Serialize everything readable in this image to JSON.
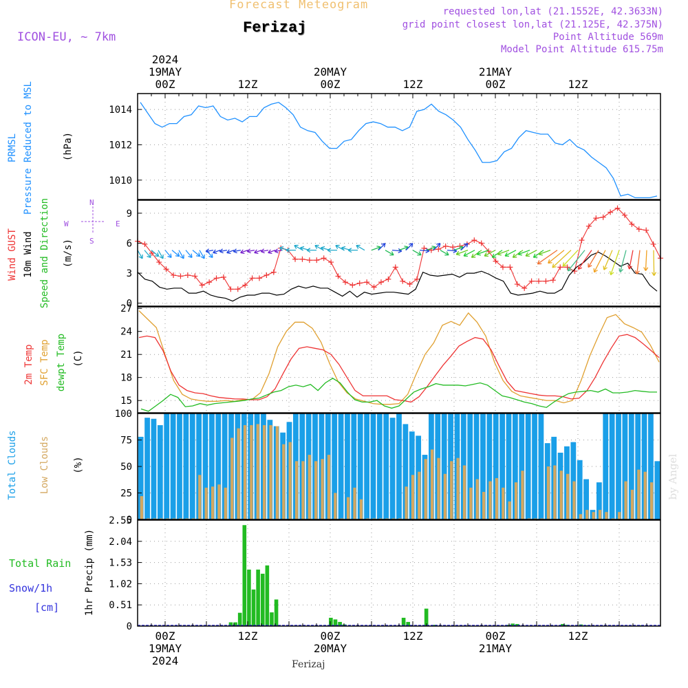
{
  "header": {
    "subtitle": "Forecast Meteogram",
    "location": "Ferizaj",
    "model": "ICON-EU, ~ 7km",
    "requested": "requested lon,lat (21.1552E, 42.3633N)",
    "gridpoint": "grid point closest lon,lat (21.125E, 42.375N)",
    "point_altitude": "Point Altitude 569m",
    "model_altitude": "Model Point Altitude 615.75m",
    "footer": "Ferizaj",
    "watermark": "by Angel"
  },
  "colors": {
    "pressure": "#1e90ff",
    "gust": "#ee3333",
    "wind": "#000000",
    "t2m": "#ee3333",
    "sfc": "#e0a030",
    "dewpt": "#22bb22",
    "total_clouds": "#1a9fe8",
    "low_clouds": "#d4a860",
    "rain": "#22bb22",
    "snow": "#3333dd",
    "header_purple": "#a050e0",
    "title_orange": "#f0c070"
  },
  "time_axis": {
    "top": [
      {
        "hour": 4,
        "lines": [
          "2024",
          "19MAY",
          "00Z"
        ]
      },
      {
        "hour": 16,
        "lines": [
          "12Z"
        ]
      },
      {
        "hour": 28,
        "lines": [
          "20MAY",
          "00Z"
        ]
      },
      {
        "hour": 40,
        "lines": [
          "12Z"
        ]
      },
      {
        "hour": 52,
        "lines": [
          "21MAY",
          "00Z"
        ]
      },
      {
        "hour": 64,
        "lines": [
          "12Z"
        ]
      }
    ],
    "bottom": [
      {
        "hour": 4,
        "lines": [
          "00Z",
          "19MAY",
          "2024"
        ]
      },
      {
        "hour": 16,
        "lines": [
          "12Z"
        ]
      },
      {
        "hour": 28,
        "lines": [
          "00Z",
          "20MAY"
        ]
      },
      {
        "hour": 40,
        "lines": [
          "12Z"
        ]
      },
      {
        "hour": 52,
        "lines": [
          "00Z",
          "21MAY"
        ]
      },
      {
        "hour": 64,
        "lines": [
          "12Z"
        ]
      }
    ]
  },
  "panel_labels": {
    "pressure": {
      "line1": "PRMSL",
      "line2": "Pressure Reduced to MSL",
      "unit": "(hPa)"
    },
    "wind": {
      "gust": "Wind GUST",
      "wind": "10m Wind",
      "dir": "Speed and Direction",
      "unit": "(m/s)",
      "compass_n": "N",
      "compass_s": "S",
      "compass_e": "E",
      "compass_w": "W"
    },
    "temp": {
      "t2m": "2m Temp",
      "sfc": "SFC Temp",
      "dewpt": "dewpt Temp",
      "unit": "(C)"
    },
    "clouds": {
      "total": "Total Clouds",
      "low": "Low Clouds",
      "unit": "(%)"
    },
    "precip": {
      "rain": "Total  Rain",
      "snow": "Snow/1h",
      "snow_unit": "[cm]",
      "axis": "1hr Precip (mm)"
    }
  },
  "chart_data": [
    {
      "type": "line",
      "title": "PRMSL Pressure Reduced to MSL",
      "ylabel": "(hPa)",
      "ylim": [
        1008.9,
        1014.9
      ],
      "yticks": [
        1010,
        1012,
        1014
      ],
      "x_hours": "0..76 hourly",
      "series": [
        {
          "name": "PRMSL",
          "values": [
            1014.4,
            1013.8,
            1013.2,
            1013.0,
            1013.2,
            1013.2,
            1013.6,
            1013.7,
            1014.2,
            1014.1,
            1014.2,
            1013.6,
            1013.4,
            1013.5,
            1013.3,
            1013.6,
            1013.6,
            1014.1,
            1014.3,
            1014.4,
            1014.1,
            1013.7,
            1013.0,
            1012.8,
            1012.7,
            1012.2,
            1011.8,
            1011.8,
            1012.2,
            1012.3,
            1012.8,
            1013.2,
            1013.3,
            1013.2,
            1013.0,
            1013.0,
            1012.8,
            1013.0,
            1013.9,
            1014.0,
            1014.3,
            1013.9,
            1013.7,
            1013.4,
            1013.0,
            1012.3,
            1011.7,
            1011.0,
            1011.0,
            1011.1,
            1011.6,
            1011.8,
            1012.4,
            1012.8,
            1012.7,
            1012.6,
            1012.6,
            1012.1,
            1012.0,
            1012.3,
            1011.9,
            1011.7,
            1011.3,
            1011.0,
            1010.7,
            1010.1,
            1009.1,
            1009.2,
            1009.0,
            1009.0,
            1009.0,
            1009.1
          ]
        }
      ]
    },
    {
      "type": "line",
      "title": "Wind GUST / 10m Wind Speed and Direction",
      "ylabel": "(m/s)",
      "ylim": [
        -0.3,
        10.3
      ],
      "yticks": [
        0,
        3,
        6,
        9
      ],
      "series": [
        {
          "name": "Wind GUST",
          "values": [
            6.2,
            5.9,
            5.0,
            4.1,
            3.4,
            2.8,
            2.7,
            2.8,
            2.7,
            1.8,
            2.1,
            2.5,
            2.6,
            1.4,
            1.4,
            1.8,
            2.5,
            2.5,
            2.8,
            3.1,
            5.5,
            5.3,
            4.4,
            4.4,
            4.3,
            4.3,
            4.5,
            4.1,
            2.7,
            2.1,
            1.8,
            2.0,
            2.1,
            1.6,
            2.1,
            2.4,
            3.6,
            2.2,
            1.9,
            2.4,
            5.5,
            5.3,
            5.4,
            5.7,
            5.6,
            5.7,
            5.9,
            6.3,
            6.0,
            5.2,
            4.2,
            3.6,
            3.6,
            1.9,
            1.5,
            2.2,
            2.2,
            2.2,
            2.3,
            3.6,
            3.6,
            3.2,
            6.3,
            7.7,
            8.5,
            8.6,
            9.1,
            9.5,
            8.8,
            7.9,
            7.4,
            7.3,
            5.9,
            4.5
          ]
        },
        {
          "name": "10m Wind",
          "values": [
            3.1,
            2.4,
            2.2,
            1.6,
            1.4,
            1.5,
            1.5,
            1.0,
            1.0,
            1.2,
            0.8,
            0.6,
            0.5,
            0.2,
            0.6,
            0.8,
            0.8,
            1.0,
            1.0,
            0.8,
            0.9,
            1.4,
            1.7,
            1.5,
            1.7,
            1.5,
            1.5,
            1.1,
            0.7,
            1.2,
            0.6,
            1.1,
            0.9,
            1.0,
            1.1,
            1.1,
            1.0,
            0.9,
            1.4,
            3.1,
            2.8,
            2.7,
            2.8,
            2.9,
            2.6,
            3.0,
            3.0,
            3.2,
            2.9,
            2.5,
            2.2,
            1.0,
            0.8,
            0.9,
            1.0,
            1.2,
            1.0,
            1.0,
            1.4,
            2.8,
            3.6,
            4.1,
            4.8,
            5.1,
            4.7,
            4.2,
            3.7,
            4.0,
            3.0,
            2.9,
            1.8,
            1.2
          ]
        },
        {
          "name": "Wind Direction",
          "values": [
            "arrows: N/NE flow 0-10h, W/NW 11-22h, S/SW arrows 23-47h, NE 48-60h, strong SE/S arrows 61-76h"
          ]
        }
      ]
    },
    {
      "type": "line",
      "title": "2m Temp / SFC Temp / dewpt Temp",
      "ylabel": "(C)",
      "ylim": [
        13.4,
        27.2
      ],
      "yticks": [
        15,
        18,
        21,
        24,
        27
      ],
      "series": [
        {
          "name": "2m Temp",
          "values": [
            23.2,
            23.4,
            23.2,
            21.5,
            18.8,
            17.0,
            16.3,
            16.0,
            15.9,
            15.6,
            15.4,
            15.3,
            15.2,
            15.2,
            15.1,
            15.1,
            15.5,
            16.5,
            18.5,
            20.4,
            21.8,
            22.0,
            21.8,
            21.6,
            21.0,
            19.7,
            18.0,
            16.3,
            15.6,
            15.6,
            15.6,
            15.6,
            15.1,
            15.0,
            14.8,
            15.5,
            16.8,
            18.2,
            19.6,
            20.8,
            22.1,
            22.7,
            23.2,
            23.0,
            21.6,
            19.5,
            17.5,
            16.3,
            16.1,
            15.9,
            15.7,
            15.6,
            15.6,
            15.5,
            15.2,
            15.3,
            16.3,
            18.0,
            20.0,
            21.8,
            23.4,
            23.6,
            23.2,
            22.4,
            21.5,
            20.6
          ]
        },
        {
          "name": "SFC Temp",
          "values": [
            26.7,
            25.6,
            24.5,
            21.0,
            17.6,
            15.8,
            15.2,
            15.0,
            14.9,
            14.9,
            15.0,
            14.9,
            15.1,
            15.1,
            16.0,
            18.5,
            22.0,
            24.0,
            25.2,
            25.2,
            24.4,
            22.6,
            19.8,
            17.4,
            16.0,
            15.2,
            14.9,
            14.6,
            14.5,
            14.5,
            14.6,
            15.8,
            18.5,
            21.0,
            22.5,
            24.8,
            25.3,
            24.8,
            26.4,
            25.2,
            23.4,
            20.0,
            17.6,
            16.2,
            15.6,
            15.4,
            15.2,
            15.0,
            15.0,
            14.7,
            15.0,
            17.6,
            20.8,
            23.4,
            25.8,
            26.2,
            25.0,
            24.5,
            23.9,
            22.2,
            20.0
          ]
        },
        {
          "name": "dewpt Temp",
          "values": [
            13.9,
            13.6,
            14.3,
            15.0,
            15.8,
            15.4,
            14.2,
            14.3,
            14.6,
            14.4,
            14.6,
            14.7,
            14.8,
            14.9,
            15.0,
            15.2,
            15.3,
            15.7,
            16.1,
            16.3,
            16.8,
            17.0,
            16.8,
            17.1,
            16.3,
            17.3,
            17.9,
            17.3,
            16.1,
            15.1,
            14.8,
            14.8,
            15.0,
            14.3,
            14.0,
            14.3,
            15.2,
            16.1,
            16.5,
            16.8,
            17.2,
            17.0,
            17.0,
            17.0,
            16.9,
            17.1,
            17.3,
            17.0,
            16.3,
            15.6,
            15.4,
            15.1,
            14.8,
            14.6,
            14.3,
            14.1,
            14.8,
            15.4,
            15.9,
            16.1,
            16.2,
            16.3,
            16.1,
            16.5,
            16.0,
            16.0,
            16.1,
            16.3,
            16.2,
            16.1,
            16.1
          ]
        }
      ]
    },
    {
      "type": "bar",
      "title": "Total Clouds / Low Clouds",
      "ylabel": "(%)",
      "ylim": [
        0,
        100
      ],
      "yticks": [
        0,
        25,
        50,
        75,
        100
      ],
      "series": [
        {
          "name": "Total Clouds",
          "values": [
            78,
            96,
            95,
            89,
            100,
            100,
            100,
            100,
            100,
            100,
            100,
            100,
            100,
            100,
            100,
            100,
            100,
            100,
            100,
            100,
            94,
            88,
            82,
            92,
            100,
            100,
            100,
            100,
            100,
            100,
            100,
            100,
            100,
            100,
            100,
            100,
            100,
            100,
            100,
            96,
            100,
            90,
            83,
            79,
            61,
            100,
            100,
            100,
            100,
            100,
            100,
            100,
            100,
            100,
            100,
            100,
            100,
            100,
            100,
            100,
            100,
            100,
            100,
            72,
            78,
            63,
            69,
            73,
            56,
            38,
            9,
            35,
            100,
            100,
            100,
            100,
            100,
            100,
            100,
            100,
            55
          ]
        },
        {
          "name": "Low Clouds",
          "values": [
            22,
            1,
            1,
            1,
            1,
            1,
            1,
            1,
            1,
            42,
            30,
            31,
            33,
            30,
            77,
            86,
            89,
            89,
            90,
            89,
            89,
            88,
            71,
            73,
            55,
            55,
            61,
            55,
            57,
            61,
            25,
            1,
            21,
            30,
            19,
            1,
            1,
            1,
            1,
            1,
            1,
            31,
            42,
            45,
            57,
            66,
            58,
            43,
            55,
            58,
            51,
            30,
            38,
            26,
            36,
            39,
            30,
            17,
            35,
            46,
            1,
            1,
            1,
            50,
            51,
            46,
            43,
            36,
            5,
            9,
            7,
            9,
            7,
            1,
            7,
            36,
            28,
            47,
            45,
            35
          ]
        }
      ]
    },
    {
      "type": "bar",
      "title": "1hr Precip (mm) Total Rain Snow/1h",
      "ylabel": "1hr Precip (mm)",
      "ylim": [
        0,
        2.55
      ],
      "yticks": [
        0,
        0.51,
        1.02,
        1.53,
        2.04,
        2.55
      ],
      "series": [
        {
          "name": "Total Rain",
          "values": [
            0,
            0,
            0,
            0,
            0,
            0,
            0,
            0,
            0,
            0,
            0,
            0,
            0,
            0,
            0,
            0,
            0,
            0,
            0,
            0.01,
            0.09,
            0.09,
            0.32,
            2.43,
            1.36,
            0.88,
            1.36,
            1.26,
            1.46,
            0.33,
            0.64,
            0,
            0,
            0,
            0,
            0,
            0,
            0,
            0,
            0,
            0,
            0.01,
            0.2,
            0.16,
            0.1,
            0.04,
            0,
            0,
            0,
            0,
            0,
            0,
            0,
            0,
            0,
            0,
            0,
            0,
            0.2,
            0.1,
            0,
            0,
            0,
            0.42,
            0,
            0.03,
            0,
            0,
            0,
            0,
            0,
            0,
            0.01,
            0,
            0,
            0,
            0,
            0,
            0,
            0,
            0,
            0.03,
            0.06,
            0.05,
            0,
            0,
            0,
            0,
            0,
            0,
            0,
            0,
            0,
            0.05,
            0.03,
            0,
            0,
            0.04,
            0.02,
            0,
            0,
            0,
            0,
            0,
            0,
            0,
            0,
            0,
            0,
            0,
            0.02,
            0,
            0,
            0,
            0
          ]
        },
        {
          "name": "Snow/1h",
          "values": [
            0
          ]
        }
      ]
    }
  ]
}
